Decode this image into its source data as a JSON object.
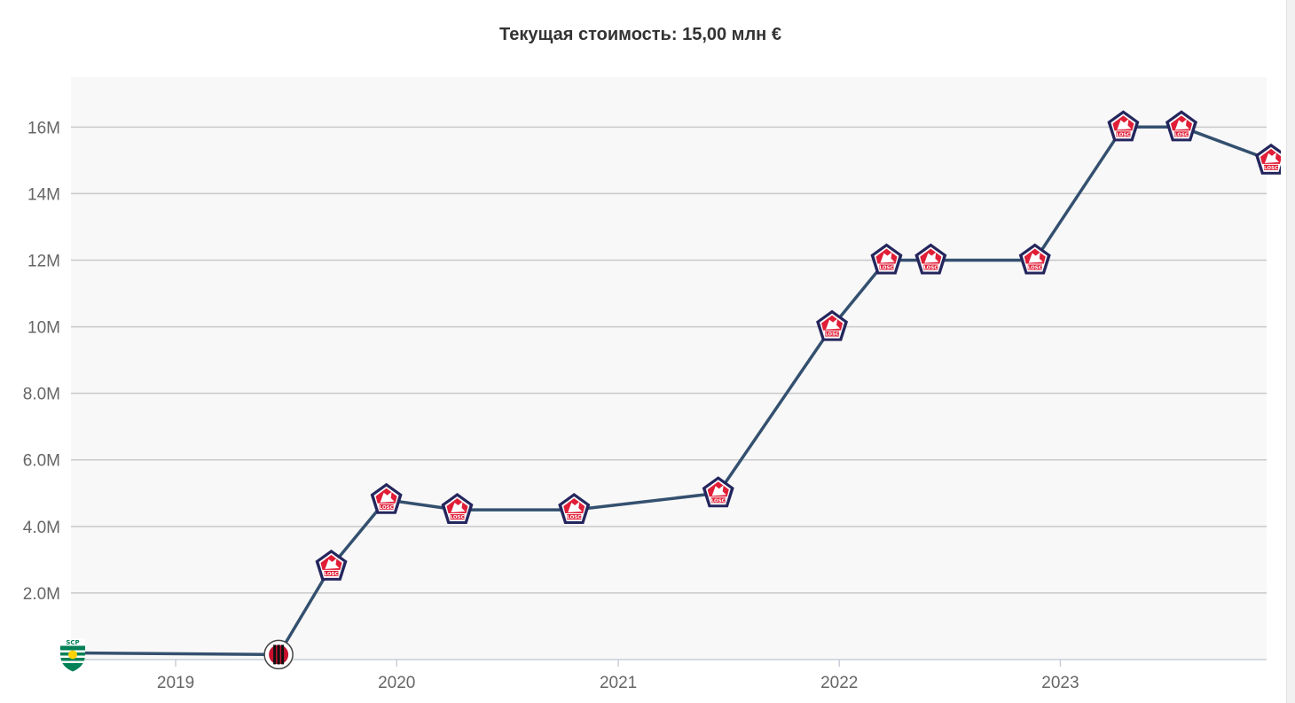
{
  "chart_data": {
    "type": "line",
    "title": "Текущая стоимость: 15,00 млн €",
    "xlabel": "",
    "ylabel": "",
    "x_ticks": [
      "2019",
      "2020",
      "2021",
      "2022",
      "2023"
    ],
    "x_range": [
      "2018-07-15",
      "2023-12-15"
    ],
    "y_ticks": [
      "2.0M",
      "4.0M",
      "6.0M",
      "8.0M",
      "10M",
      "12M",
      "14M",
      "16M"
    ],
    "ylim": [
      0,
      17.5
    ],
    "y_unit": "M",
    "grid": true,
    "legend": "none",
    "line_color": "#34506f",
    "plot_background": "#f8f8f8",
    "series": [
      {
        "values": [
          {
            "date": "2018-07-15",
            "value": 0.2,
            "club": "Sporting CP"
          },
          {
            "date": "2019-06-20",
            "value": 0.15,
            "club": "AC Milan"
          },
          {
            "date": "2019-09-15",
            "value": 2.8,
            "club": "LOSC Lille"
          },
          {
            "date": "2019-12-15",
            "value": 4.8,
            "club": "LOSC Lille"
          },
          {
            "date": "2020-04-10",
            "value": 4.5,
            "club": "LOSC Lille"
          },
          {
            "date": "2020-10-20",
            "value": 4.5,
            "club": "LOSC Lille"
          },
          {
            "date": "2021-06-15",
            "value": 5.0,
            "club": "LOSC Lille"
          },
          {
            "date": "2021-12-20",
            "value": 10.0,
            "club": "LOSC Lille"
          },
          {
            "date": "2022-03-20",
            "value": 12.0,
            "club": "LOSC Lille"
          },
          {
            "date": "2022-06-01",
            "value": 12.0,
            "club": "LOSC Lille"
          },
          {
            "date": "2022-11-20",
            "value": 12.0,
            "club": "LOSC Lille"
          },
          {
            "date": "2023-04-15",
            "value": 16.0,
            "club": "LOSC Lille"
          },
          {
            "date": "2023-07-20",
            "value": 16.0,
            "club": "LOSC Lille"
          },
          {
            "date": "2023-12-15",
            "value": 15.0,
            "club": "LOSC Lille"
          }
        ]
      }
    ]
  }
}
